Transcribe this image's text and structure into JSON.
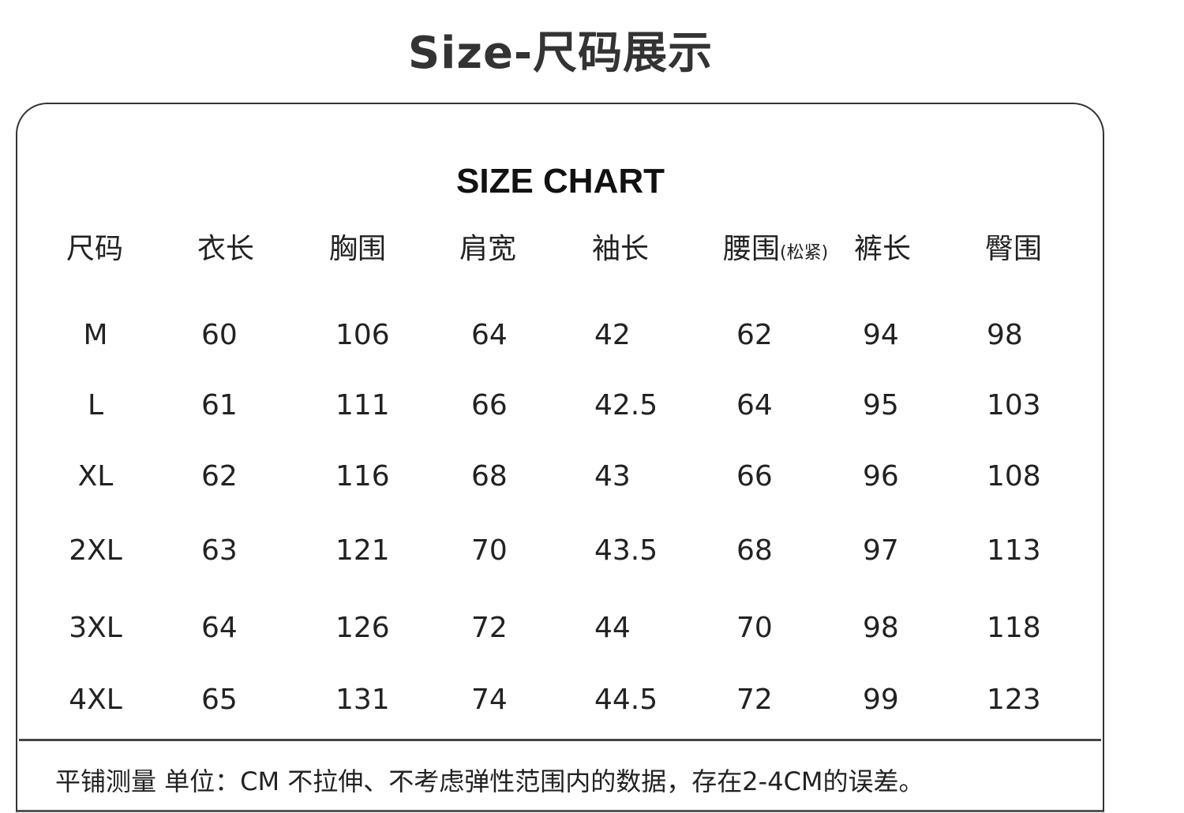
{
  "title": "Size-尺码展示",
  "subtitle": "SIZE CHART",
  "headers": [
    "尺码",
    "衣长",
    "胸围",
    "肩宽",
    "袖长",
    "腰围",
    "裤长",
    "臀围"
  ],
  "waist_note": "(松紧)",
  "rows": [
    [
      "M",
      "60",
      "106",
      "64",
      "42",
      "62",
      "94",
      "98"
    ],
    [
      "L",
      "61",
      "111",
      "66",
      "42.5",
      "64",
      "95",
      "103"
    ],
    [
      "XL",
      "62",
      "116",
      "68",
      "43",
      "66",
      "96",
      "108"
    ],
    [
      "2XL",
      "63",
      "121",
      "70",
      "43.5",
      "68",
      "97",
      "113"
    ],
    [
      "3XL",
      "64",
      "126",
      "72",
      "44",
      "70",
      "98",
      "118"
    ],
    [
      "4XL",
      "65",
      "131",
      "74",
      "44.5",
      "72",
      "99",
      "123"
    ]
  ],
  "footnote": "平铺测量  单位：CM  不拉伸、不考虑弹性范围内的数据，存在2-4CM的误差。"
}
